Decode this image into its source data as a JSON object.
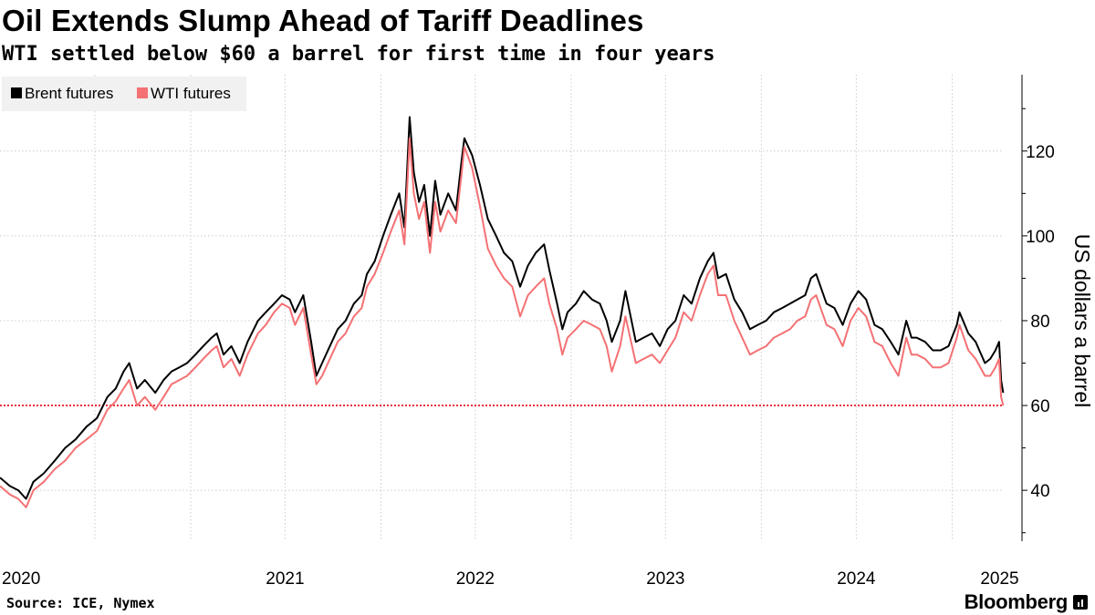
{
  "header": {
    "title": "Oil Extends Slump Ahead of Tariff Deadlines",
    "subtitle": "WTI settled below $60 a barrel for first time in four years"
  },
  "footer": {
    "source": "Source: ICE, Nymex",
    "brand": "Bloomberg"
  },
  "colors": {
    "brent": "#000000",
    "wti": "#f47174",
    "reference_line": "#e8303a",
    "grid": "#cccccc"
  },
  "chart_data": {
    "type": "line",
    "ylabel": "US dollars a barrel",
    "ylim": [
      28,
      138
    ],
    "yticks": [
      40,
      60,
      80,
      100,
      120
    ],
    "xlim": [
      "2020-01-01",
      "2025-04-10"
    ],
    "xticks": [
      "2020",
      "2021",
      "2022",
      "2023",
      "2024",
      "2025"
    ],
    "legend": {
      "placement": "top-left"
    },
    "reference_line": {
      "y": 60,
      "style": "dotted"
    },
    "series": [
      {
        "name": "Brent futures",
        "points": [
          [
            "2020-01-01",
            43
          ],
          [
            "2020-01-20",
            41
          ],
          [
            "2020-02-05",
            40
          ],
          [
            "2020-02-20",
            38
          ],
          [
            "2020-03-05",
            42
          ],
          [
            "2020-03-25",
            44
          ],
          [
            "2020-04-15",
            47
          ],
          [
            "2020-05-05",
            50
          ],
          [
            "2020-05-25",
            52
          ],
          [
            "2020-06-15",
            55
          ],
          [
            "2020-07-05",
            57
          ],
          [
            "2020-07-25",
            62
          ],
          [
            "2020-08-10",
            64
          ],
          [
            "2020-08-25",
            68
          ],
          [
            "2020-09-05",
            70
          ],
          [
            "2020-09-20",
            64
          ],
          [
            "2020-10-05",
            66
          ],
          [
            "2020-10-25",
            63
          ],
          [
            "2020-11-10",
            66
          ],
          [
            "2020-11-25",
            68
          ],
          [
            "2020-12-10",
            69
          ],
          [
            "2020-12-25",
            70
          ],
          [
            "2021-01-10",
            72
          ],
          [
            "2021-01-25",
            74
          ],
          [
            "2021-02-10",
            76
          ],
          [
            "2021-02-20",
            77
          ],
          [
            "2021-03-05",
            72
          ],
          [
            "2021-03-20",
            74
          ],
          [
            "2021-04-05",
            70
          ],
          [
            "2021-04-20",
            75
          ],
          [
            "2021-05-10",
            80
          ],
          [
            "2021-05-25",
            82
          ],
          [
            "2021-06-10",
            84
          ],
          [
            "2021-06-25",
            86
          ],
          [
            "2021-07-10",
            85
          ],
          [
            "2021-07-20",
            82
          ],
          [
            "2021-08-05",
            86
          ],
          [
            "2021-08-20",
            75
          ],
          [
            "2021-08-30",
            67
          ],
          [
            "2021-09-10",
            70
          ],
          [
            "2021-09-25",
            74
          ],
          [
            "2021-10-10",
            78
          ],
          [
            "2021-10-25",
            80
          ],
          [
            "2021-11-10",
            84
          ],
          [
            "2021-11-25",
            86
          ],
          [
            "2021-12-05",
            91
          ],
          [
            "2021-12-20",
            94
          ],
          [
            "2022-01-05",
            100
          ],
          [
            "2022-01-20",
            105
          ],
          [
            "2022-02-05",
            110
          ],
          [
            "2022-02-15",
            102
          ],
          [
            "2022-02-25",
            128
          ],
          [
            "2022-03-05",
            115
          ],
          [
            "2022-03-15",
            108
          ],
          [
            "2022-03-25",
            112
          ],
          [
            "2022-04-05",
            100
          ],
          [
            "2022-04-15",
            113
          ],
          [
            "2022-04-25",
            105
          ],
          [
            "2022-05-10",
            110
          ],
          [
            "2022-05-25",
            106
          ],
          [
            "2022-06-05",
            118
          ],
          [
            "2022-06-10",
            123
          ],
          [
            "2022-06-25",
            119
          ],
          [
            "2022-07-10",
            112
          ],
          [
            "2022-07-25",
            104
          ],
          [
            "2022-08-10",
            100
          ],
          [
            "2022-08-25",
            96
          ],
          [
            "2022-09-10",
            94
          ],
          [
            "2022-09-25",
            88
          ],
          [
            "2022-10-10",
            93
          ],
          [
            "2022-10-25",
            96
          ],
          [
            "2022-11-10",
            98
          ],
          [
            "2022-11-20",
            92
          ],
          [
            "2022-12-05",
            84
          ],
          [
            "2022-12-15",
            78
          ],
          [
            "2022-12-25",
            82
          ],
          [
            "2023-01-10",
            84
          ],
          [
            "2023-01-25",
            87
          ],
          [
            "2023-02-10",
            85
          ],
          [
            "2023-02-25",
            84
          ],
          [
            "2023-03-10",
            80
          ],
          [
            "2023-03-20",
            75
          ],
          [
            "2023-04-05",
            80
          ],
          [
            "2023-04-15",
            87
          ],
          [
            "2023-05-05",
            75
          ],
          [
            "2023-05-20",
            76
          ],
          [
            "2023-06-05",
            77
          ],
          [
            "2023-06-20",
            74
          ],
          [
            "2023-07-05",
            78
          ],
          [
            "2023-07-20",
            80
          ],
          [
            "2023-08-05",
            86
          ],
          [
            "2023-08-20",
            84
          ],
          [
            "2023-09-05",
            90
          ],
          [
            "2023-09-20",
            94
          ],
          [
            "2023-10-01",
            96
          ],
          [
            "2023-10-10",
            90
          ],
          [
            "2023-10-25",
            91
          ],
          [
            "2023-11-10",
            85
          ],
          [
            "2023-11-25",
            82
          ],
          [
            "2023-12-10",
            78
          ],
          [
            "2023-12-25",
            79
          ],
          [
            "2024-01-10",
            80
          ],
          [
            "2024-01-25",
            82
          ],
          [
            "2024-02-10",
            83
          ],
          [
            "2024-02-25",
            84
          ],
          [
            "2024-03-10",
            85
          ],
          [
            "2024-03-25",
            86
          ],
          [
            "2024-04-05",
            90
          ],
          [
            "2024-04-15",
            91
          ],
          [
            "2024-05-05",
            84
          ],
          [
            "2024-05-20",
            83
          ],
          [
            "2024-06-05",
            79
          ],
          [
            "2024-06-20",
            84
          ],
          [
            "2024-07-05",
            87
          ],
          [
            "2024-07-20",
            85
          ],
          [
            "2024-08-05",
            79
          ],
          [
            "2024-08-20",
            78
          ],
          [
            "2024-09-05",
            75
          ],
          [
            "2024-09-20",
            72
          ],
          [
            "2024-10-05",
            80
          ],
          [
            "2024-10-15",
            76
          ],
          [
            "2024-10-25",
            76
          ],
          [
            "2024-11-10",
            75
          ],
          [
            "2024-11-25",
            73
          ],
          [
            "2024-12-10",
            73
          ],
          [
            "2024-12-25",
            74
          ],
          [
            "2025-01-10",
            79
          ],
          [
            "2025-01-15",
            82
          ],
          [
            "2025-02-01",
            77
          ],
          [
            "2025-02-15",
            75
          ],
          [
            "2025-03-05",
            70
          ],
          [
            "2025-03-15",
            71
          ],
          [
            "2025-03-25",
            73
          ],
          [
            "2025-04-01",
            75
          ],
          [
            "2025-04-05",
            66
          ],
          [
            "2025-04-09",
            63
          ]
        ]
      },
      {
        "name": "WTI futures",
        "points": [
          [
            "2020-01-01",
            41
          ],
          [
            "2020-01-20",
            39
          ],
          [
            "2020-02-05",
            38
          ],
          [
            "2020-02-20",
            36
          ],
          [
            "2020-03-05",
            40
          ],
          [
            "2020-03-25",
            42
          ],
          [
            "2020-04-15",
            45
          ],
          [
            "2020-05-05",
            47
          ],
          [
            "2020-05-25",
            50
          ],
          [
            "2020-06-15",
            52
          ],
          [
            "2020-07-05",
            54
          ],
          [
            "2020-07-25",
            59
          ],
          [
            "2020-08-10",
            61
          ],
          [
            "2020-08-25",
            64
          ],
          [
            "2020-09-05",
            66
          ],
          [
            "2020-09-20",
            60
          ],
          [
            "2020-10-05",
            62
          ],
          [
            "2020-10-25",
            59
          ],
          [
            "2020-11-10",
            62
          ],
          [
            "2020-11-25",
            65
          ],
          [
            "2020-12-10",
            66
          ],
          [
            "2020-12-25",
            67
          ],
          [
            "2021-01-10",
            69
          ],
          [
            "2021-01-25",
            71
          ],
          [
            "2021-02-10",
            73
          ],
          [
            "2021-02-20",
            74
          ],
          [
            "2021-03-05",
            69
          ],
          [
            "2021-03-20",
            71
          ],
          [
            "2021-04-05",
            67
          ],
          [
            "2021-04-20",
            72
          ],
          [
            "2021-05-10",
            77
          ],
          [
            "2021-05-25",
            79
          ],
          [
            "2021-06-10",
            82
          ],
          [
            "2021-06-25",
            84
          ],
          [
            "2021-07-10",
            83
          ],
          [
            "2021-07-20",
            79
          ],
          [
            "2021-08-05",
            83
          ],
          [
            "2021-08-20",
            72
          ],
          [
            "2021-08-30",
            65
          ],
          [
            "2021-09-10",
            67
          ],
          [
            "2021-09-25",
            71
          ],
          [
            "2021-10-10",
            75
          ],
          [
            "2021-10-25",
            77
          ],
          [
            "2021-11-10",
            81
          ],
          [
            "2021-11-25",
            83
          ],
          [
            "2021-12-05",
            88
          ],
          [
            "2021-12-20",
            91
          ],
          [
            "2022-01-05",
            96
          ],
          [
            "2022-01-20",
            101
          ],
          [
            "2022-02-05",
            106
          ],
          [
            "2022-02-15",
            98
          ],
          [
            "2022-02-25",
            123
          ],
          [
            "2022-03-05",
            110
          ],
          [
            "2022-03-15",
            104
          ],
          [
            "2022-03-25",
            108
          ],
          [
            "2022-04-05",
            96
          ],
          [
            "2022-04-15",
            108
          ],
          [
            "2022-04-25",
            101
          ],
          [
            "2022-05-10",
            106
          ],
          [
            "2022-05-25",
            103
          ],
          [
            "2022-06-05",
            115
          ],
          [
            "2022-06-10",
            121
          ],
          [
            "2022-06-25",
            116
          ],
          [
            "2022-07-10",
            107
          ],
          [
            "2022-07-25",
            97
          ],
          [
            "2022-08-10",
            93
          ],
          [
            "2022-08-25",
            90
          ],
          [
            "2022-09-10",
            88
          ],
          [
            "2022-09-25",
            81
          ],
          [
            "2022-10-10",
            86
          ],
          [
            "2022-10-25",
            88
          ],
          [
            "2022-11-10",
            90
          ],
          [
            "2022-11-20",
            84
          ],
          [
            "2022-12-05",
            78
          ],
          [
            "2022-12-15",
            72
          ],
          [
            "2022-12-25",
            76
          ],
          [
            "2023-01-10",
            78
          ],
          [
            "2023-01-25",
            80
          ],
          [
            "2023-02-10",
            79
          ],
          [
            "2023-02-25",
            78
          ],
          [
            "2023-03-10",
            74
          ],
          [
            "2023-03-20",
            68
          ],
          [
            "2023-04-05",
            74
          ],
          [
            "2023-04-15",
            81
          ],
          [
            "2023-05-05",
            70
          ],
          [
            "2023-05-20",
            71
          ],
          [
            "2023-06-05",
            72
          ],
          [
            "2023-06-20",
            70
          ],
          [
            "2023-07-05",
            73
          ],
          [
            "2023-07-20",
            76
          ],
          [
            "2023-08-05",
            82
          ],
          [
            "2023-08-20",
            80
          ],
          [
            "2023-09-05",
            86
          ],
          [
            "2023-09-20",
            91
          ],
          [
            "2023-10-01",
            93
          ],
          [
            "2023-10-10",
            86
          ],
          [
            "2023-10-25",
            86
          ],
          [
            "2023-11-10",
            80
          ],
          [
            "2023-11-25",
            76
          ],
          [
            "2023-12-10",
            72
          ],
          [
            "2023-12-25",
            73
          ],
          [
            "2024-01-10",
            74
          ],
          [
            "2024-01-25",
            76
          ],
          [
            "2024-02-10",
            77
          ],
          [
            "2024-02-25",
            78
          ],
          [
            "2024-03-10",
            80
          ],
          [
            "2024-03-25",
            81
          ],
          [
            "2024-04-05",
            85
          ],
          [
            "2024-04-15",
            86
          ],
          [
            "2024-05-05",
            79
          ],
          [
            "2024-05-20",
            78
          ],
          [
            "2024-06-05",
            74
          ],
          [
            "2024-06-20",
            80
          ],
          [
            "2024-07-05",
            83
          ],
          [
            "2024-07-20",
            81
          ],
          [
            "2024-08-05",
            75
          ],
          [
            "2024-08-20",
            74
          ],
          [
            "2024-09-05",
            70
          ],
          [
            "2024-09-20",
            67
          ],
          [
            "2024-10-05",
            76
          ],
          [
            "2024-10-15",
            72
          ],
          [
            "2024-10-25",
            72
          ],
          [
            "2024-11-10",
            71
          ],
          [
            "2024-11-25",
            69
          ],
          [
            "2024-12-10",
            69
          ],
          [
            "2024-12-25",
            70
          ],
          [
            "2025-01-10",
            76
          ],
          [
            "2025-01-15",
            79
          ],
          [
            "2025-02-01",
            73
          ],
          [
            "2025-02-15",
            71
          ],
          [
            "2025-03-05",
            67
          ],
          [
            "2025-03-15",
            67
          ],
          [
            "2025-03-25",
            69
          ],
          [
            "2025-04-01",
            71
          ],
          [
            "2025-04-05",
            62
          ],
          [
            "2025-04-09",
            60
          ]
        ]
      }
    ]
  }
}
